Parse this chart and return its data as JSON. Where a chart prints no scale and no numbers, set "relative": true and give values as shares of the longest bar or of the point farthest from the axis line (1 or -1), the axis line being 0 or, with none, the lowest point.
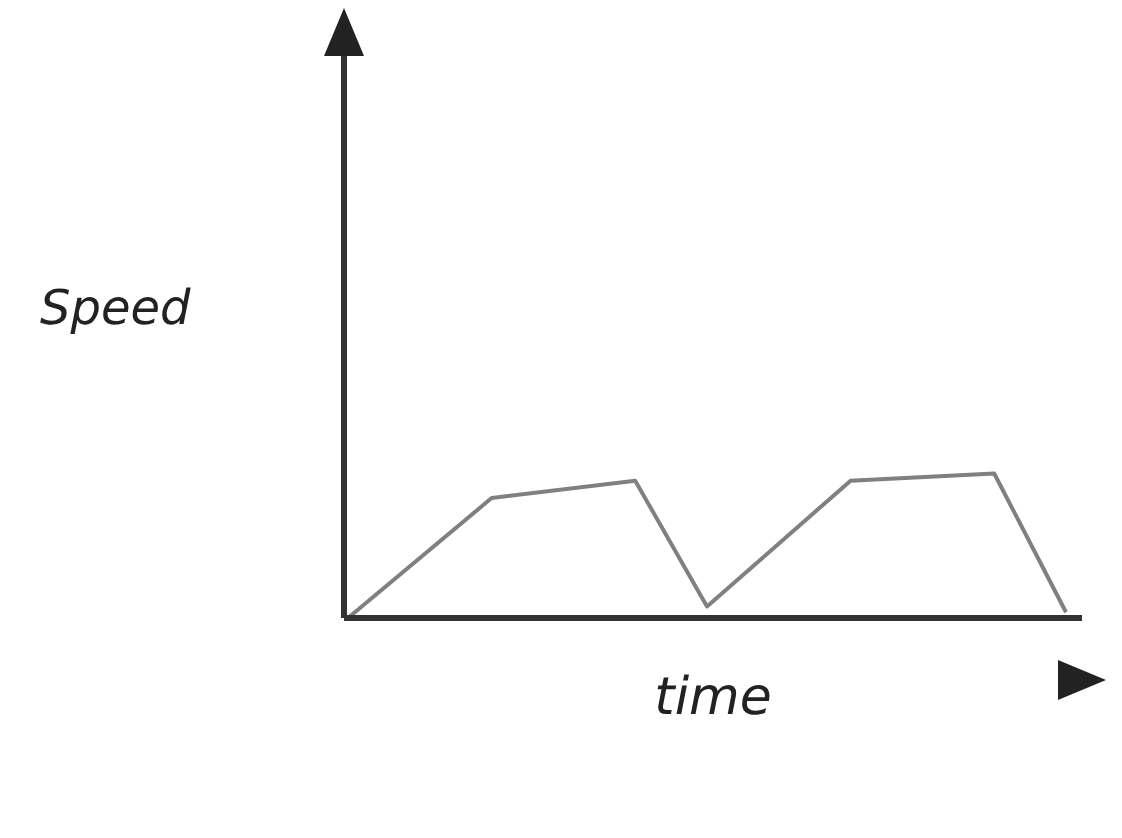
{
  "chart_data": {
    "type": "line",
    "xlabel": "time",
    "ylabel": "Speed",
    "relative": true,
    "grid": false,
    "legend": false,
    "marker": "none",
    "line_style": "solid",
    "categories": [
      null,
      null,
      null,
      null,
      null,
      null,
      null,
      null,
      null,
      null,
      null
    ],
    "series": [
      {
        "color": "#808080",
        "values": [
          0,
          null,
          0.83,
          null,
          0.95,
          0.08,
          null,
          0.95,
          null,
          1,
          0.04
        ]
      }
    ]
  }
}
